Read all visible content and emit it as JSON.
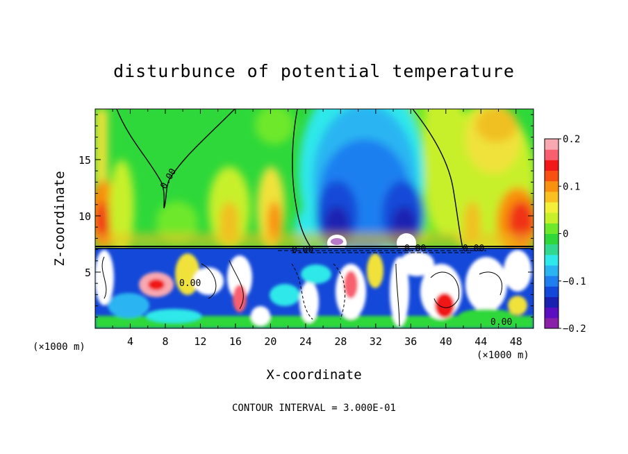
{
  "chart_data": {
    "type": "heatmap",
    "title": "disturbunce of potential temperature",
    "xlabel": "X-coordinate",
    "ylabel": "Z-coordinate",
    "x_unit": "(×1000 m)",
    "x_unit_right": "(×1000 m)",
    "xlim": [
      0,
      50
    ],
    "ylim": [
      0,
      19.5
    ],
    "x_ticks": [
      4,
      8,
      12,
      16,
      20,
      24,
      28,
      32,
      36,
      40,
      44,
      48
    ],
    "y_ticks": [
      5,
      10,
      15
    ],
    "colorbar": {
      "range": [
        -0.2,
        0.2
      ],
      "tick_values": [
        0.2,
        0.1,
        0,
        -0.1,
        -0.2
      ],
      "tick_labels": [
        "0.2",
        "0.1",
        "0",
        "−0.1",
        "−0.2"
      ],
      "colors": [
        "#8a1fa8",
        "#5a10c0",
        "#1a20b0",
        "#1448d8",
        "#1f7ff0",
        "#29b5f2",
        "#2fe8ea",
        "#33d890",
        "#2ed83a",
        "#6ee82a",
        "#c8f02a",
        "#f4f03a",
        "#f8c020",
        "#f89010",
        "#f85010",
        "#f01818",
        "#f86070",
        "#f8a8b0"
      ]
    },
    "contour_labels": [
      "0.00",
      "0.00",
      "0.00",
      "0.00",
      "0.00",
      "0.00"
    ],
    "footer": "CONTOUR INTERVAL = 3.000E-01"
  },
  "colors": {
    "background": "#ffffff",
    "upper_base": "#2ed83a",
    "inversion_line": "#000000"
  }
}
